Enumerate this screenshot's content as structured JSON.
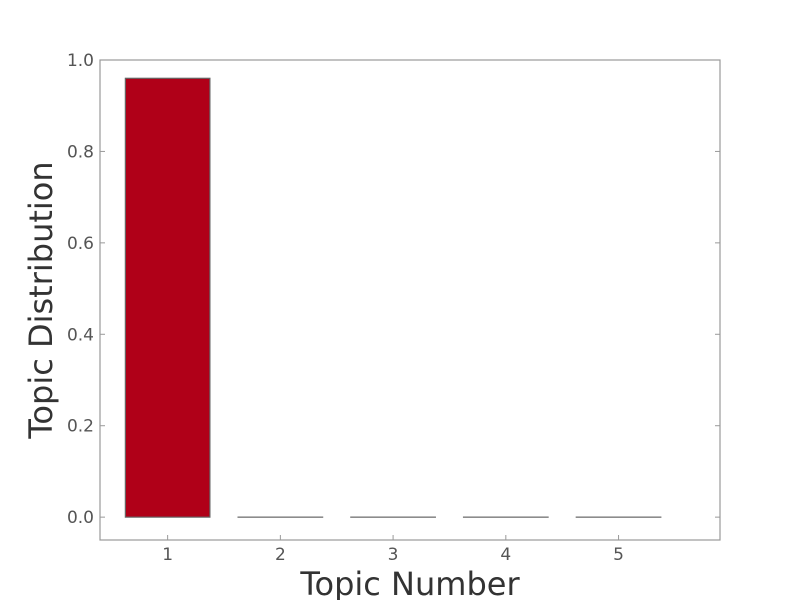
{
  "chart_data": {
    "type": "bar",
    "categories": [
      "1",
      "2",
      "3",
      "4",
      "5"
    ],
    "values": [
      0.96,
      0.0,
      0.0,
      0.0,
      0.0
    ],
    "xlabel": "Topic Number",
    "ylabel": "Topic Distribution",
    "ylim": [
      -0.05,
      1.0
    ],
    "yticks": [
      "0.0",
      "0.2",
      "0.4",
      "0.6",
      "0.8",
      "1.0"
    ],
    "grid": false,
    "legend": "none",
    "colors": {
      "bar_fill": "#b00018",
      "bar_stroke": "#666666",
      "frame": "#999999"
    }
  }
}
